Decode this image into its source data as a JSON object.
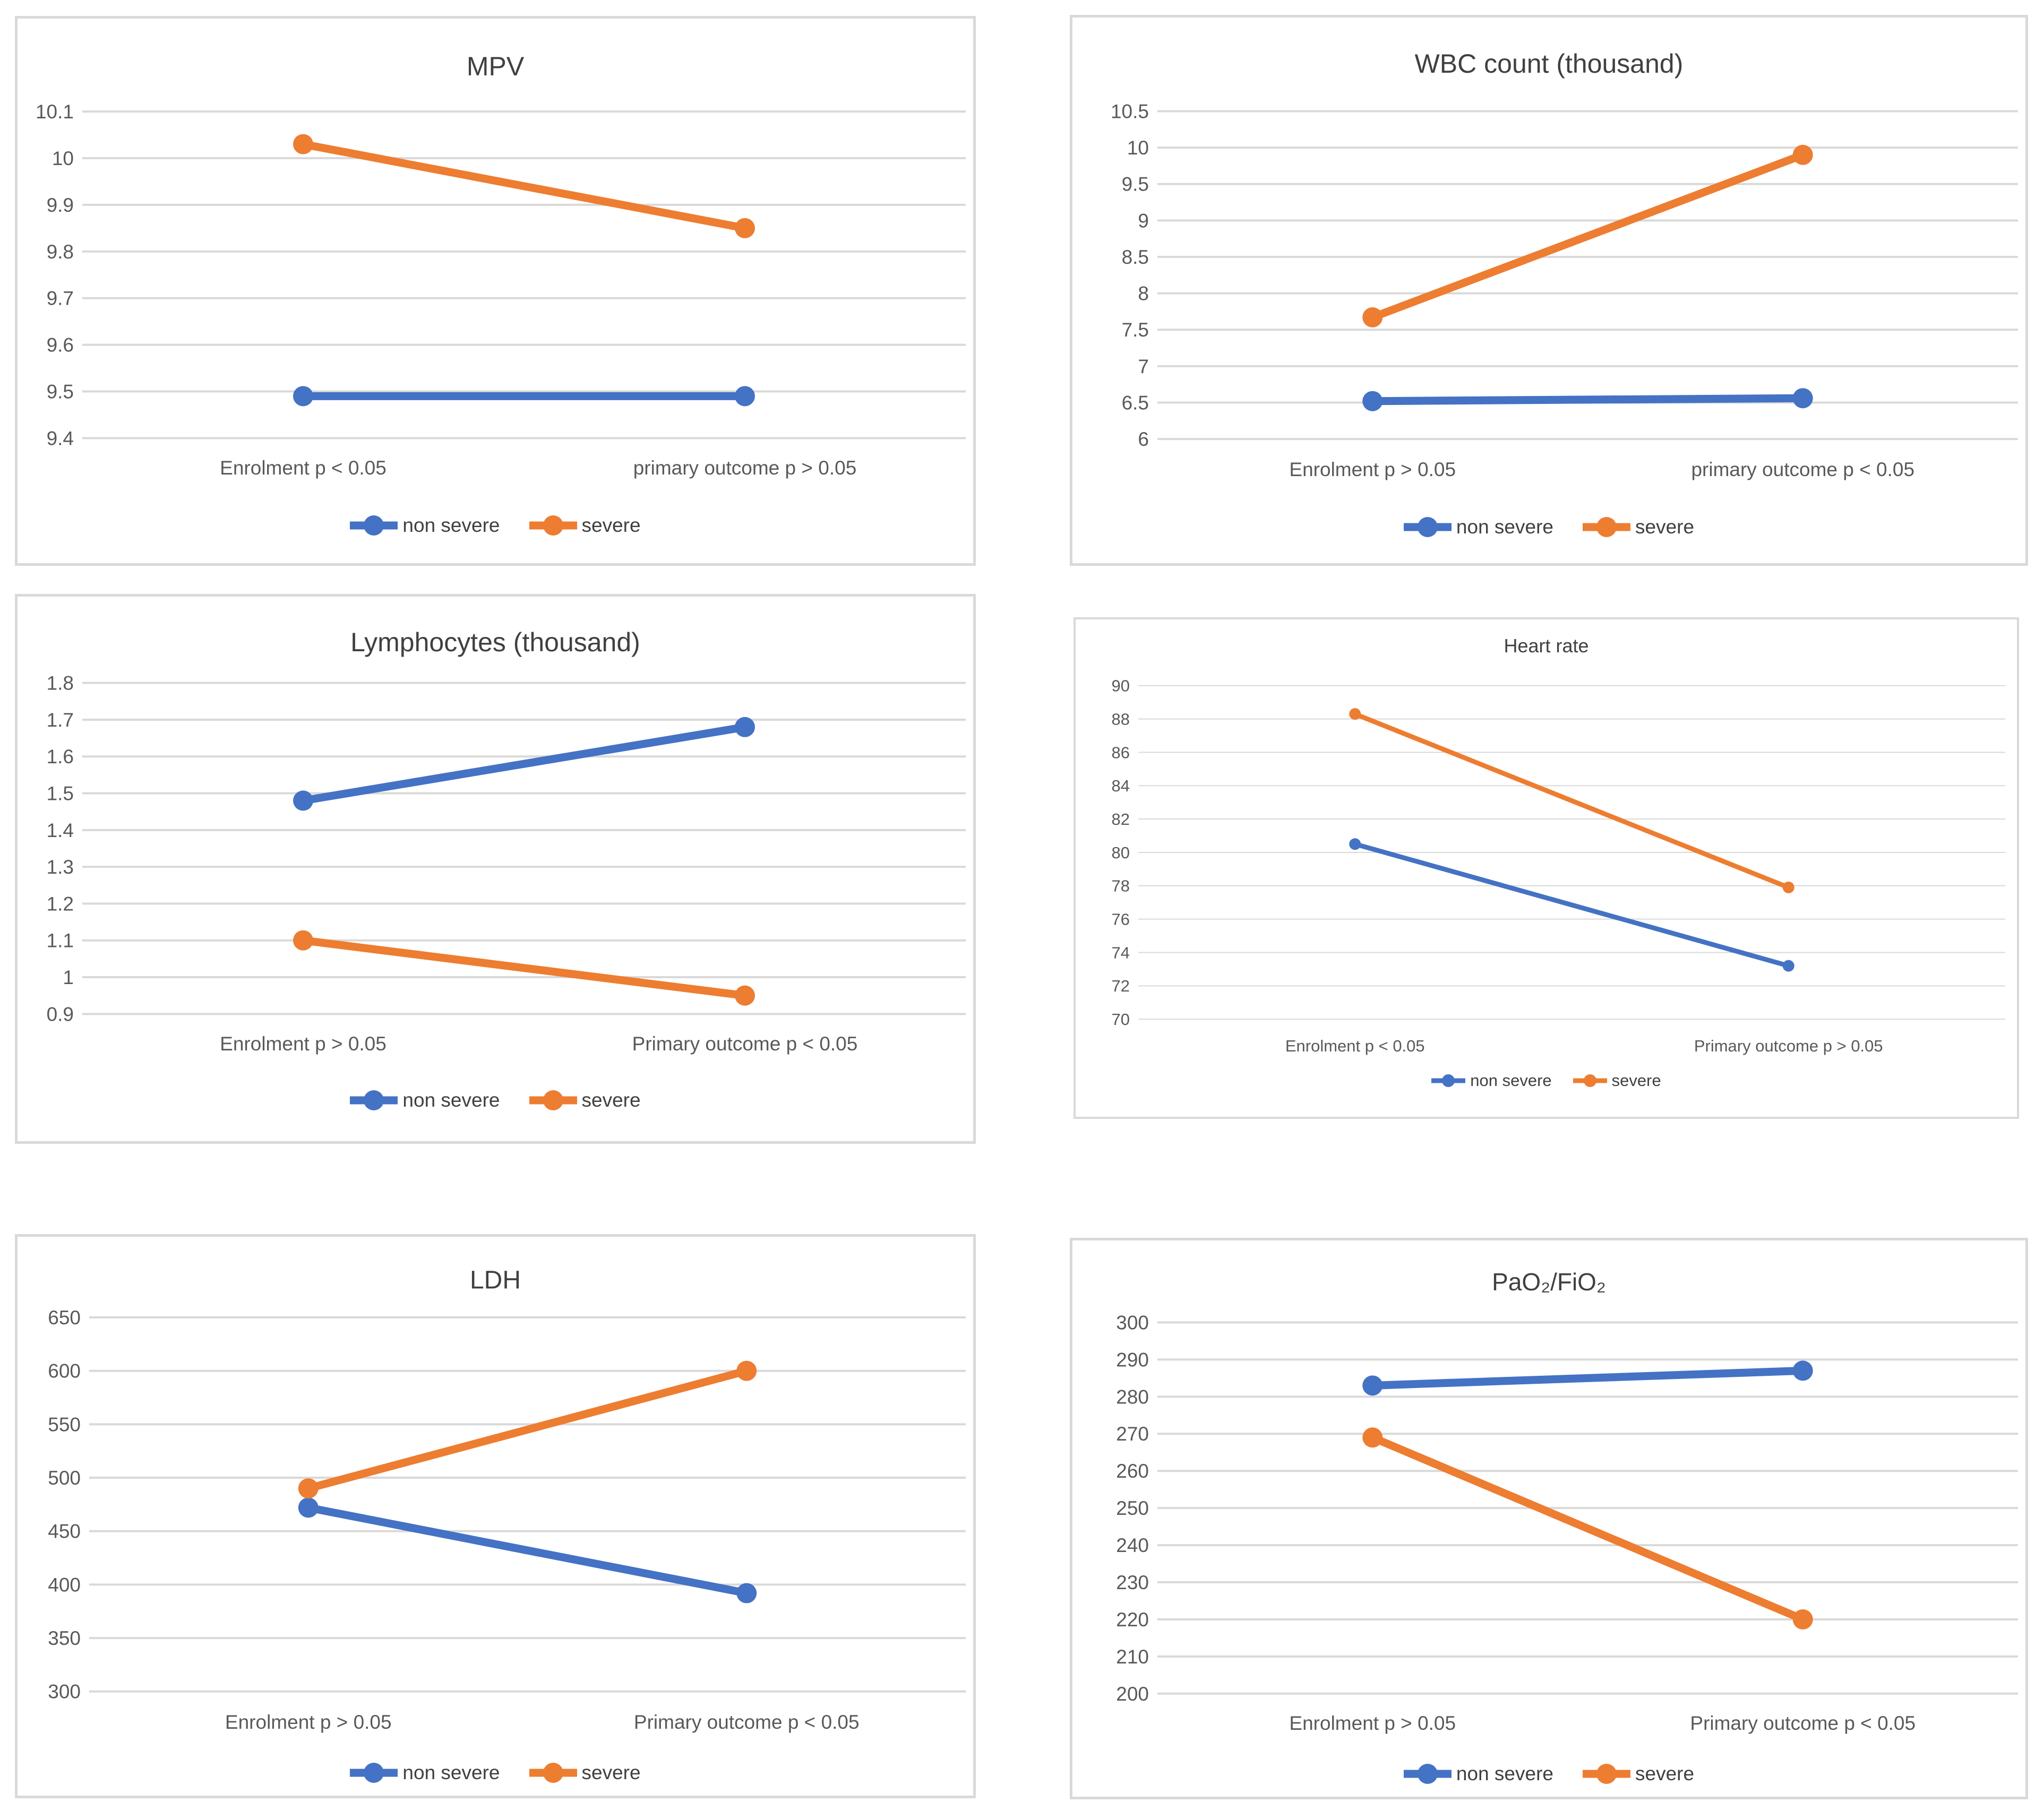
{
  "page": {
    "background": "#ffffff"
  },
  "colors": {
    "non_severe_series": "#4472C4",
    "severe_series": "#ED7D31",
    "gridline": "#D9D9D9",
    "panel_border": "#D9D9D9",
    "axis_text": "#595959",
    "title_text": "#404040"
  },
  "legend": {
    "non_severe_label": "non severe",
    "severe_label": "severe"
  },
  "chart_data": [
    {
      "id": "mpv",
      "type": "line",
      "title": "MPV",
      "categories": [
        "Enrolment p < 0.05",
        "primary outcome p > 0.05"
      ],
      "series": [
        {
          "name": "non severe",
          "color": "#4472C4",
          "values": [
            9.49,
            9.49
          ]
        },
        {
          "name": "severe",
          "color": "#ED7D31",
          "values": [
            10.03,
            9.85
          ]
        }
      ],
      "ylim": [
        9.4,
        10.1
      ],
      "ytick_step": 0.1,
      "grid": true,
      "legend_position": "bottom",
      "legend_entries": [
        "non severe",
        "severe"
      ]
    },
    {
      "id": "wbc",
      "type": "line",
      "title": "WBC count (thousand)",
      "categories": [
        "Enrolment p > 0.05",
        "primary outcome p < 0.05"
      ],
      "series": [
        {
          "name": "non severe",
          "color": "#4472C4",
          "values": [
            6.52,
            6.56
          ]
        },
        {
          "name": "severe",
          "color": "#ED7D31",
          "values": [
            7.67,
            9.9
          ]
        }
      ],
      "ylim": [
        6,
        10.5
      ],
      "ytick_step": 0.5,
      "grid": true,
      "legend_position": "bottom",
      "legend_entries": [
        "non severe",
        "severe"
      ]
    },
    {
      "id": "lymphocytes",
      "type": "line",
      "title": "Lymphocytes (thousand)",
      "categories": [
        "Enrolment p > 0.05",
        "Primary outcome p < 0.05"
      ],
      "series": [
        {
          "name": "non severe",
          "color": "#4472C4",
          "values": [
            1.48,
            1.68
          ]
        },
        {
          "name": "severe",
          "color": "#ED7D31",
          "values": [
            1.1,
            0.95
          ]
        }
      ],
      "ylim": [
        0.9,
        1.8
      ],
      "ytick_step": 0.1,
      "grid": true,
      "legend_position": "bottom",
      "legend_entries": [
        "non severe",
        "severe"
      ]
    },
    {
      "id": "heart-rate",
      "type": "line",
      "title": "Heart rate",
      "categories": [
        "Enrolment p < 0.05",
        "Primary outcome p > 0.05"
      ],
      "series": [
        {
          "name": "non severe",
          "color": "#4472C4",
          "values": [
            80.5,
            73.2
          ]
        },
        {
          "name": "severe",
          "color": "#ED7D31",
          "values": [
            88.3,
            77.9
          ]
        }
      ],
      "ylim": [
        70,
        90
      ],
      "ytick_step": 2,
      "grid": true,
      "legend_position": "bottom",
      "legend_entries": [
        "non severe",
        "severe"
      ]
    },
    {
      "id": "ldh",
      "type": "line",
      "title": "LDH",
      "categories": [
        "Enrolment p > 0.05",
        "Primary outcome p < 0.05"
      ],
      "series": [
        {
          "name": "non severe",
          "color": "#4472C4",
          "values": [
            472,
            392
          ]
        },
        {
          "name": "severe",
          "color": "#ED7D31",
          "values": [
            490,
            600
          ]
        }
      ],
      "ylim": [
        300,
        650
      ],
      "ytick_step": 50,
      "grid": true,
      "legend_position": "bottom",
      "legend_entries": [
        "non severe",
        "severe"
      ]
    },
    {
      "id": "pao2-fio2",
      "type": "line",
      "title": "PaO₂/FiO₂",
      "categories": [
        "Enrolment p > 0.05",
        "Primary outcome p < 0.05"
      ],
      "series": [
        {
          "name": "non severe",
          "color": "#4472C4",
          "values": [
            283,
            287
          ]
        },
        {
          "name": "severe",
          "color": "#ED7D31",
          "values": [
            269,
            220
          ]
        }
      ],
      "ylim": [
        200,
        300
      ],
      "ytick_step": 10,
      "grid": true,
      "legend_position": "bottom",
      "legend_entries": [
        "non severe",
        "severe"
      ]
    }
  ]
}
